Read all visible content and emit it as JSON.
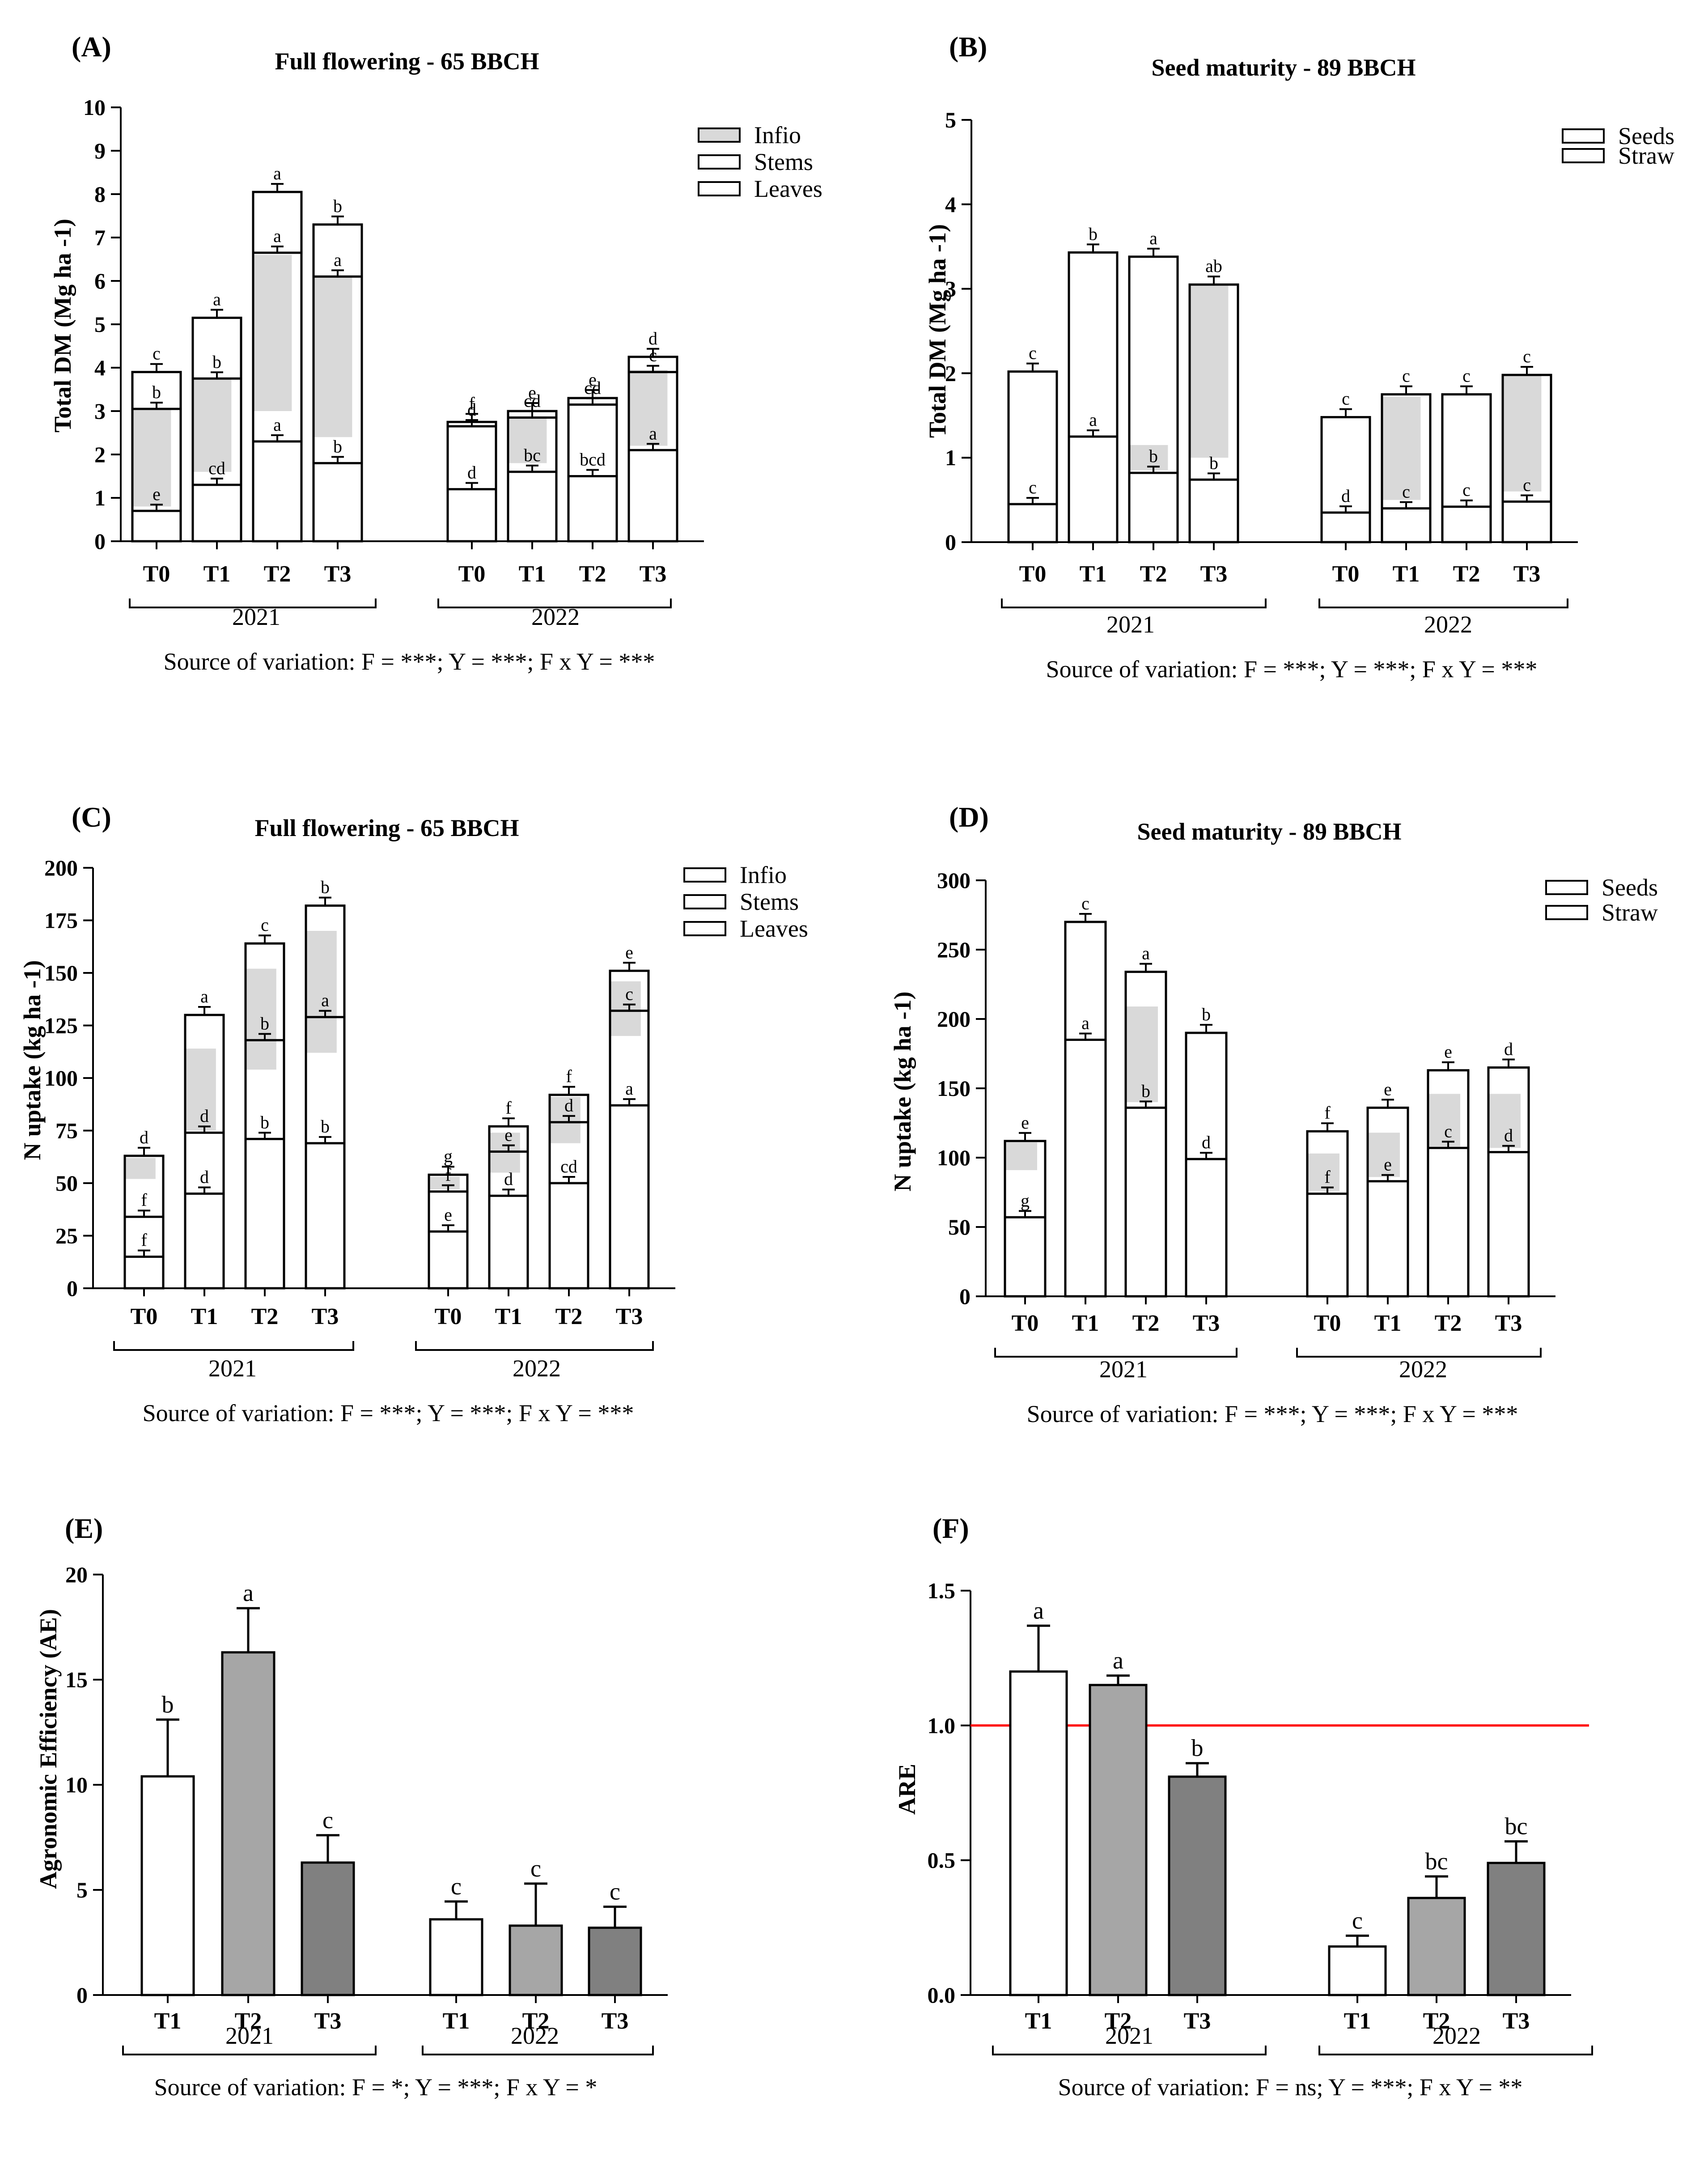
{
  "chart_data": [
    {
      "id": "A",
      "panel_label": "(A)",
      "type": "bar",
      "title": "Full flowering - 65 BBCH",
      "ylabel": "Total DM (Mg ha -1)",
      "ylim": [
        0,
        10
      ],
      "ytick_step": 1,
      "yticks": [
        "0",
        "1",
        "2",
        "3",
        "4",
        "5",
        "6",
        "7",
        "8",
        "9",
        "10"
      ],
      "stacked": true,
      "legend": [
        {
          "name": "Infio",
          "fill": "#d9d9d9"
        },
        {
          "name": "Stems",
          "fill": "#ffffff"
        },
        {
          "name": "Leaves",
          "fill": "#ffffff"
        }
      ],
      "groups": [
        {
          "year": "2021",
          "categories": [
            "T0",
            "T1",
            "T2",
            "T3"
          ]
        },
        {
          "year": "2022",
          "categories": [
            "T0",
            "T1",
            "T2",
            "T3"
          ]
        }
      ],
      "series": [
        {
          "name": "Leaves",
          "values": [
            0.7,
            1.3,
            2.3,
            1.8,
            1.2,
            1.6,
            1.5,
            2.1
          ],
          "letters": [
            "e",
            "cd",
            "a",
            "b",
            "d",
            "bc",
            "bcd",
            "a"
          ]
        },
        {
          "name": "Stems",
          "values": [
            2.35,
            2.45,
            4.35,
            4.3,
            1.45,
            1.25,
            1.65,
            1.8
          ],
          "letters": [
            "b",
            "b",
            "a",
            "a",
            "d",
            "cd",
            "cd",
            "c"
          ]
        },
        {
          "name": "Infio",
          "values": [
            0.85,
            1.4,
            1.4,
            1.2,
            0.1,
            0.15,
            0.15,
            0.35
          ],
          "letters": [
            "c",
            "a",
            "a",
            "b",
            "f",
            "e",
            "e",
            "d"
          ]
        }
      ],
      "shading": [
        [
          0.8,
          3.05
        ],
        [
          1.6,
          3.75
        ],
        [
          3.0,
          6.6
        ],
        [
          2.4,
          6.1
        ],
        null,
        [
          1.8,
          2.85
        ],
        null,
        [
          2.2,
          3.95
        ]
      ],
      "source": "Source of variation: F = ***; Y = ***; F x Y = ***"
    },
    {
      "id": "B",
      "panel_label": "(B)",
      "type": "bar",
      "title": "Seed maturity - 89 BBCH",
      "ylabel": "Total DM (Mg ha -1)",
      "ylim": [
        0,
        5
      ],
      "ytick_step": 1,
      "yticks": [
        "0",
        "1",
        "2",
        "3",
        "4",
        "5"
      ],
      "stacked": true,
      "legend": [
        {
          "name": "Seeds",
          "fill": "#ffffff"
        },
        {
          "name": "Straw",
          "fill": "#ffffff"
        }
      ],
      "groups": [
        {
          "year": "2021",
          "categories": [
            "T0",
            "T1",
            "T2",
            "T3"
          ]
        },
        {
          "year": "2022",
          "categories": [
            "T0",
            "T1",
            "T2",
            "T3"
          ]
        }
      ],
      "series": [
        {
          "name": "Seeds",
          "values": [
            0.45,
            1.25,
            0.82,
            0.74,
            0.35,
            0.4,
            0.42,
            0.48
          ],
          "letters": [
            "c",
            "a",
            "b",
            "b",
            "d",
            "c",
            "c",
            "c"
          ]
        },
        {
          "name": "Straw",
          "values": [
            1.57,
            2.18,
            2.56,
            2.31,
            1.13,
            1.35,
            1.33,
            1.5
          ],
          "letters": [
            "c",
            "b",
            "a",
            "ab",
            "c",
            "c",
            "c",
            "c"
          ]
        }
      ],
      "shading": [
        null,
        null,
        [
          0.85,
          1.15
        ],
        [
          1.0,
          3.05
        ],
        null,
        [
          0.5,
          1.72
        ],
        null,
        [
          0.6,
          1.97
        ]
      ],
      "source": "Source of variation: F = ***; Y = ***; F x Y = ***"
    },
    {
      "id": "C",
      "panel_label": "(C)",
      "type": "bar",
      "title": "Full flowering - 65 BBCH",
      "ylabel": "N uptake (kg ha -1)",
      "ylim": [
        0,
        200
      ],
      "ytick_step": 25,
      "yticks": [
        "0",
        "25",
        "50",
        "75",
        "100",
        "125",
        "150",
        "175",
        "200"
      ],
      "stacked": true,
      "legend": [
        {
          "name": "Infio",
          "fill": "#ffffff"
        },
        {
          "name": "Stems",
          "fill": "#ffffff"
        },
        {
          "name": "Leaves",
          "fill": "#ffffff"
        }
      ],
      "groups": [
        {
          "year": "2021",
          "categories": [
            "T0",
            "T1",
            "T2",
            "T3"
          ]
        },
        {
          "year": "2022",
          "categories": [
            "T0",
            "T1",
            "T2",
            "T3"
          ]
        }
      ],
      "series": [
        {
          "name": "Leaves",
          "values": [
            15,
            45,
            71,
            69,
            27,
            44,
            50,
            87
          ],
          "letters": [
            "f",
            "d",
            "b",
            "b",
            "e",
            "d",
            "cd",
            "a"
          ]
        },
        {
          "name": "Stems",
          "values": [
            19,
            29,
            47,
            60,
            19,
            21,
            29,
            45
          ],
          "letters": [
            "f",
            "d",
            "b",
            "a",
            "f",
            "e",
            "d",
            "c"
          ]
        },
        {
          "name": "Infio",
          "values": [
            29,
            56,
            46,
            53,
            8,
            12,
            13,
            19
          ],
          "letters": [
            "d",
            "a",
            "c",
            "b",
            "g",
            "f",
            "f",
            "e"
          ]
        }
      ],
      "shading": [
        [
          52,
          62
        ],
        [
          75,
          114
        ],
        [
          104,
          152
        ],
        [
          112,
          170
        ],
        [
          47,
          53
        ],
        [
          55,
          74
        ],
        [
          69,
          91
        ],
        [
          120,
          146
        ]
      ],
      "source": "Source of variation: F = ***; Y = ***; F x Y = ***"
    },
    {
      "id": "D",
      "panel_label": "(D)",
      "type": "bar",
      "title": "Seed maturity - 89 BBCH",
      "ylabel": "N uptake (kg ha -1)",
      "ylim": [
        0,
        300
      ],
      "ytick_step": 50,
      "yticks": [
        "0",
        "50",
        "100",
        "150",
        "200",
        "250",
        "300"
      ],
      "stacked": true,
      "legend": [
        {
          "name": "Seeds",
          "fill": "#ffffff"
        },
        {
          "name": "Straw",
          "fill": "#ffffff"
        }
      ],
      "groups": [
        {
          "year": "2021",
          "categories": [
            "T0",
            "T1",
            "T2",
            "T3"
          ]
        },
        {
          "year": "2022",
          "categories": [
            "T0",
            "T1",
            "T2",
            "T3"
          ]
        }
      ],
      "series": [
        {
          "name": "Seeds",
          "values": [
            57,
            185,
            136,
            99,
            74,
            83,
            107,
            104
          ],
          "letters": [
            "g",
            "a",
            "b",
            "d",
            "f",
            "e",
            "c",
            "d"
          ]
        },
        {
          "name": "Straw",
          "values": [
            55,
            85,
            98,
            91,
            45,
            53,
            56,
            61
          ],
          "letters": [
            "e",
            "c",
            "a",
            "b",
            "f",
            "e",
            "e",
            "d"
          ]
        }
      ],
      "shading": [
        [
          91,
          111
        ],
        null,
        [
          140,
          209
        ],
        null,
        [
          76,
          103
        ],
        [
          86,
          118
        ],
        [
          108,
          146
        ],
        [
          107,
          146
        ]
      ],
      "source": "Source of variation: F = ***; Y = ***; F x Y = ***"
    },
    {
      "id": "E",
      "panel_label": "(E)",
      "type": "bar",
      "ylabel": "Agronomic Efficiency (AE)",
      "ylim": [
        0,
        20
      ],
      "ytick_step": 5,
      "yticks": [
        "0",
        "5",
        "10",
        "15",
        "20"
      ],
      "stacked": false,
      "groups": [
        {
          "year": "2021",
          "categories": [
            "T1",
            "T2",
            "T3"
          ]
        },
        {
          "year": "2022",
          "categories": [
            "T1",
            "T2",
            "T3"
          ]
        }
      ],
      "colors": [
        "#ffffff",
        "#a6a6a6",
        "#808080",
        "#ffffff",
        "#a6a6a6",
        "#808080"
      ],
      "values": [
        10.4,
        16.3,
        6.3,
        3.6,
        3.3,
        3.2
      ],
      "errors": [
        2.7,
        2.1,
        1.3,
        0.85,
        2.0,
        1.0
      ],
      "letters": [
        "b",
        "a",
        "c",
        "c",
        "c",
        "c"
      ],
      "source": "Source of variation: F = *; Y = ***; F x Y = *"
    },
    {
      "id": "F",
      "panel_label": "(F)",
      "type": "bar",
      "ylabel": "ARE",
      "ylim": [
        0,
        1.5
      ],
      "ytick_step": 0.5,
      "yticks": [
        "0.0",
        "0.5",
        "1.0",
        "1.5"
      ],
      "stacked": false,
      "groups": [
        {
          "year": "2021",
          "categories": [
            "T1",
            "T2",
            "T3"
          ]
        },
        {
          "year": "2022",
          "categories": [
            "T1",
            "T2",
            "T3"
          ]
        }
      ],
      "colors": [
        "#ffffff",
        "#a6a6a6",
        "#808080",
        "#ffffff",
        "#a6a6a6",
        "#808080"
      ],
      "values": [
        1.2,
        1.15,
        0.81,
        0.18,
        0.36,
        0.49
      ],
      "errors": [
        0.17,
        0.035,
        0.05,
        0.04,
        0.08,
        0.08
      ],
      "letters": [
        "a",
        "a",
        "b",
        "c",
        "bc",
        "bc"
      ],
      "reference_line": {
        "value": 1.0,
        "color": "#ff0000"
      },
      "source": "Source of variation: F = ns; Y = ***; F x Y = **"
    }
  ]
}
